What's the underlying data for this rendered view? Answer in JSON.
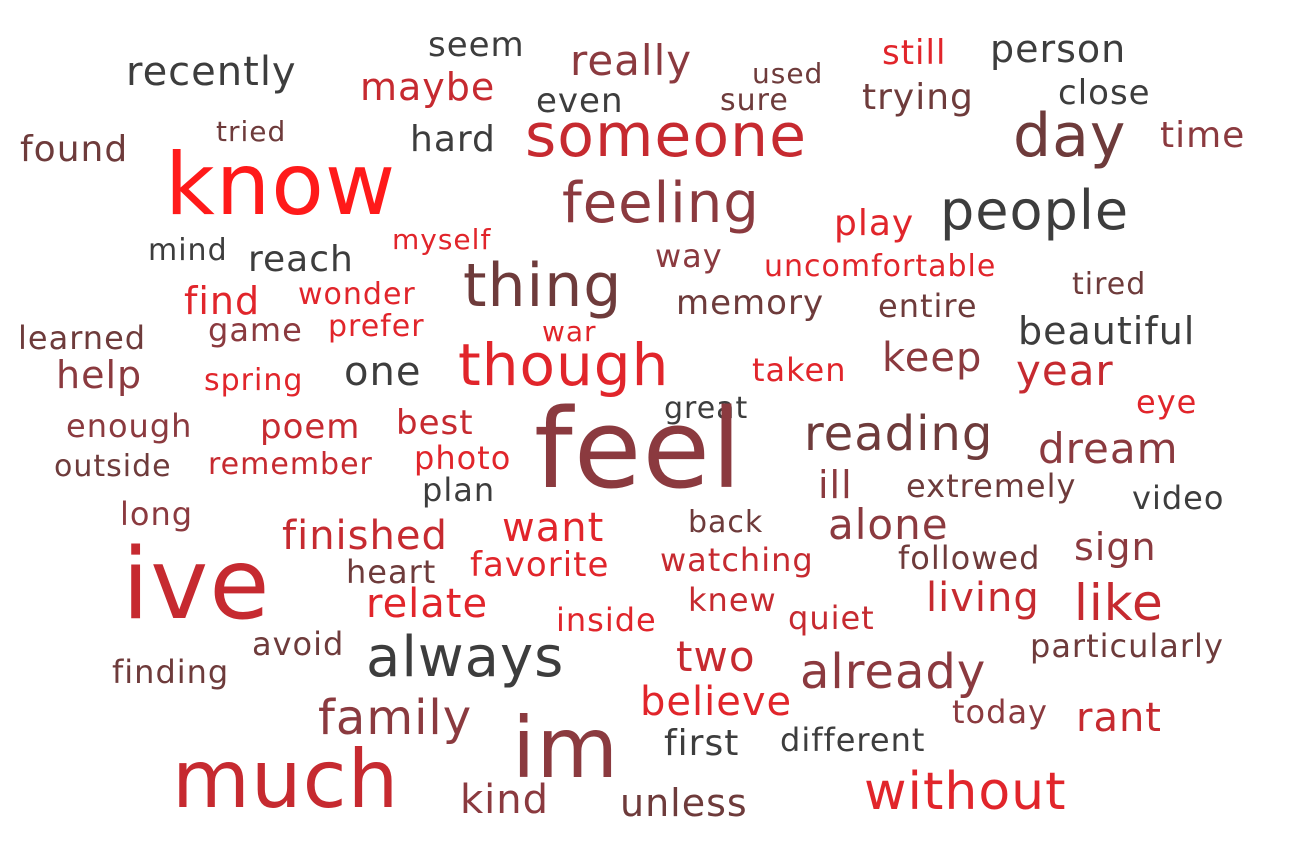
{
  "words": {
    "seem": "seem",
    "really": "really",
    "still": "still",
    "person": "person",
    "recently": "recently",
    "maybe": "maybe",
    "used": "used",
    "even": "even",
    "sure": "sure",
    "trying": "trying",
    "close": "close",
    "tried": "tried",
    "hard": "hard",
    "someone": "someone",
    "day": "day",
    "time": "time",
    "found": "found",
    "know": "know",
    "feeling": "feeling",
    "play": "play",
    "people": "people",
    "myself": "myself",
    "mind": "mind",
    "reach": "reach",
    "way": "way",
    "uncomfortable": "uncomfortable",
    "thing": "thing",
    "tired": "tired",
    "find": "find",
    "wonder": "wonder",
    "memory": "memory",
    "entire": "entire",
    "learned": "learned",
    "game": "game",
    "prefer": "prefer",
    "war": "war",
    "beautiful": "beautiful",
    "though": "though",
    "keep": "keep",
    "help": "help",
    "spring": "spring",
    "one": "one",
    "taken": "taken",
    "year": "year",
    "great": "great",
    "eye": "eye",
    "feel": "feel",
    "enough": "enough",
    "poem": "poem",
    "best": "best",
    "reading": "reading",
    "dream": "dream",
    "outside": "outside",
    "remember": "remember",
    "photo": "photo",
    "ill": "ill",
    "extremely": "extremely",
    "plan": "plan",
    "video": "video",
    "long": "long",
    "back": "back",
    "want": "want",
    "alone": "alone",
    "finished": "finished",
    "sign": "sign",
    "ive": "ive",
    "favorite": "favorite",
    "watching": "watching",
    "followed": "followed",
    "heart": "heart",
    "living": "living",
    "like": "like",
    "relate": "relate",
    "knew": "knew",
    "inside": "inside",
    "quiet": "quiet",
    "avoid": "avoid",
    "particularly": "particularly",
    "always": "always",
    "two": "two",
    "finding": "finding",
    "already": "already",
    "believe": "believe",
    "today": "today",
    "family": "family",
    "rant": "rant",
    "im": "im",
    "first": "first",
    "different": "different",
    "much": "much",
    "without": "without",
    "kind": "kind",
    "unless": "unless"
  },
  "palette": {
    "charcoal": "#3d3d3d",
    "maroon": "#8b3a3f",
    "red": "#e1252b",
    "crimson": "#c62a30",
    "brown": "#6e3b3b",
    "bright_red": "#ff1a1a"
  }
}
